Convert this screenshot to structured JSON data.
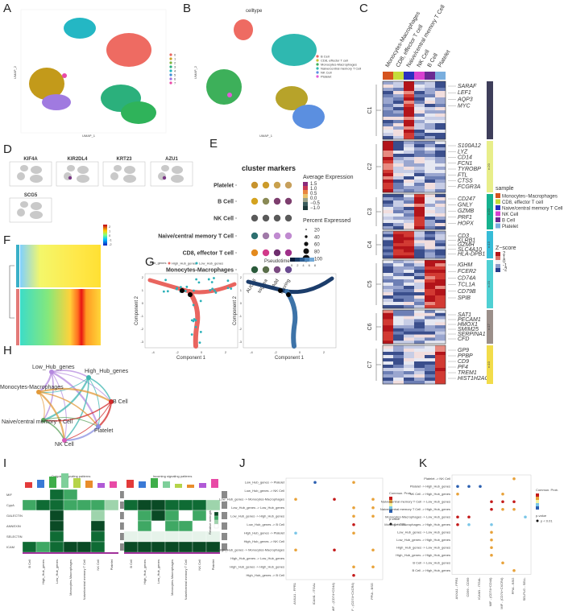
{
  "panels": {
    "A": {
      "label": "A",
      "legend": [
        "0",
        "1",
        "2",
        "3",
        "4",
        "5",
        "6",
        "7"
      ],
      "legend_colors": [
        "#e9655f",
        "#c9a227",
        "#7db33d",
        "#2ab07f",
        "#24b7c4",
        "#3c8fd6",
        "#a070e0",
        "#e94aa8"
      ],
      "xlab": "UMAP_1",
      "ylab": "UMAP_2"
    },
    "B": {
      "label": "B",
      "title": "celltype",
      "legend": [
        "B Cell",
        "CD8, effector T cell",
        "Monocytes-Macrophages",
        "Naive/central memory T Cell",
        "NK Cell",
        "Platelet"
      ],
      "legend_colors": [
        "#e9655f",
        "#c7c230",
        "#3db05a",
        "#2fb8b0",
        "#5b8fe0",
        "#e25ad8"
      ],
      "xlab": "UMAP_1",
      "ylab": "UMAP_2"
    },
    "C": {
      "label": "C",
      "columns": [
        "Monocytes-Macrophages",
        "CD8, effector T cell",
        "Naive/central memory T Cell",
        "NK Cell",
        "B Cell",
        "Platelet"
      ],
      "column_colors": [
        "#d5531e",
        "#c4dc3a",
        "#2a2fbf",
        "#d940d0",
        "#6b2a92",
        "#7aaede"
      ],
      "clusters": [
        "C1",
        "C2",
        "C3",
        "C4",
        "C5",
        "C6",
        "C7"
      ],
      "cluster_bars": [
        {
          "text": "n:20",
          "color": "#3e3e5a"
        },
        {
          "text": "n:20",
          "color": "#e8ee8a"
        },
        {
          "text": "n:20",
          "color": "#16b28f"
        },
        {
          "text": "n:13",
          "color": "#36bcd7"
        },
        {
          "text": "n:20",
          "color": "#4fd0d3"
        },
        {
          "text": "n:17",
          "color": "#9b8f8a"
        },
        {
          "text": "n:10",
          "color": "#f2dc4a"
        }
      ],
      "genes": {
        "C1": [
          "SARAF",
          "LEF1",
          "AQP3",
          "MYC"
        ],
        "C2": [
          "S100A12",
          "LYZ",
          "CD14",
          "FCN1",
          "TYROBP",
          "FTL",
          "CTSS",
          "FCGR3A"
        ],
        "C3": [
          "CD247",
          "GNLY",
          "GZMB",
          "PRF1",
          "HOPX"
        ],
        "C4": [
          "CD3",
          "KLRB1",
          "GZMH",
          "SLC4A10",
          "HLA-DPB1"
        ],
        "C5": [
          "IGHM",
          "FCER2",
          "CD74A",
          "TCL1A",
          "CD79B",
          "SPIB"
        ],
        "C6": [
          "SAT1",
          "PECAM1",
          "HMOX1",
          "SMIM25",
          "SERPINA1",
          "CFD"
        ],
        "C7": [
          "GP9",
          "PPBP",
          "CD9",
          "PF4",
          "TREM1",
          "HIST1H2AC"
        ]
      },
      "gene_colors": {
        "C1": "#444",
        "C2": "#a0c21a",
        "C3": "#1f9a3a",
        "C4": "#19a3c6",
        "C5": "#2ab0a8",
        "C6": "#555",
        "C7": "#c9ad1a"
      },
      "sample_legend_title": "sample",
      "sample_legend": [
        "Monocytes−Macrophages",
        "CD8, effector T cell",
        "Naive/central memory T Cell",
        "NK Cell",
        "B Cell",
        "Platelet"
      ],
      "zscore_title": "Z−score",
      "zscore_ticks": [
        "2",
        "1",
        "0",
        "-1",
        "-2"
      ]
    },
    "D": {
      "label": "D",
      "genes": [
        "KIF4A",
        "KIR2DL4",
        "KRT23",
        "AZU1",
        "SCG5"
      ]
    },
    "E": {
      "label": "E",
      "title": "cluster markers",
      "rows": [
        "Platelet",
        "B Cell",
        "NK Cell",
        "Naive/central memory T Cell",
        "CD8, effector T cell",
        "Monocytes-Macrophages"
      ],
      "cols": [
        "AUCell",
        "ssgsea",
        "Add",
        "Scoring"
      ],
      "avg_title": "Average Expression",
      "avg_ticks": [
        "1.5",
        "1.0",
        "0.5",
        "0.0",
        "−0.5",
        "−1.0"
      ],
      "pct_title": "Percent Expressed",
      "pct_ticks": [
        "20",
        "40",
        "60",
        "80",
        "100"
      ]
    },
    "F": {
      "label": "F",
      "legend_ticks": [
        "2",
        "1",
        "0",
        "-1",
        "-2"
      ]
    },
    "G": {
      "label": "G",
      "legend_title": "Hub_genes",
      "legend": [
        "High_Hub_genes",
        "Low_Hub_genes"
      ],
      "legend_colors": [
        "#e9655f",
        "#2ab0b8"
      ],
      "pseudo_title": "Pseudotime",
      "pseudo_ticks": [
        "0",
        "2",
        "4",
        "6",
        "8"
      ],
      "xlab": "Component 1",
      "ylab": "Component 2",
      "x_ticks": [
        "-4",
        "-2",
        "0",
        "2"
      ],
      "y_ticks": [
        "-3",
        "-2",
        "-1",
        "0",
        "1",
        "2"
      ]
    },
    "H": {
      "label": "H",
      "nodes": [
        "Low_Hub_genes",
        "High_Hub_genes",
        "Monocytes-Macrophages",
        "B Cell",
        "Naive/central memory T Cell",
        "Platelet",
        "NK Cell"
      ]
    },
    "I": {
      "label": "I",
      "left_title": "Outgoing signaling patterns",
      "right_title": "Incoming signaling patterns",
      "rows": [
        "MIF",
        "CypA",
        "GALECTIN",
        "ANNEXIN",
        "SELECTIN",
        "ICAM"
      ],
      "cols": [
        "B Cell",
        "High_Hub_genes",
        "Low_Hub_genes",
        "Monocytes-Macrophages",
        "Naive/central memory T Cell",
        "NK Cell",
        "Platelet"
      ],
      "strength_label": "Relative strength"
    },
    "J": {
      "label": "J",
      "rows": [
        "Low_Hub_genes -> Platelet",
        "Low_Hub_genes -> NK Cell",
        "Low_Hub_genes -> Monocytes-Macrophages",
        "Low_Hub_genes -> Low_Hub_genes",
        "Low_Hub_genes -> High_Hub_genes",
        "Low_Hub_genes -> B Cell",
        "High_Hub_genes -> Platelet",
        "High_Hub_genes -> NK Cell",
        "High_Hub_genes -> Monocytes-Macrophages",
        "High_Hub_genes -> Low_Hub_genes",
        "High_Hub_genes -> High_Hub_genes",
        "High_Hub_genes -> B Cell"
      ],
      "cols": [
        "ANXA1 - FPR1",
        "ICAM1 - ITGAL",
        "MIF - (CD74+CD44)",
        "MIF - (CD74+CXCR4)",
        "PPIA - BSG"
      ],
      "legend_title": "Commun. Prob.",
      "pval_title": "p-value",
      "pval": [
        "p < 0.01"
      ]
    },
    "K": {
      "label": "K",
      "rows": [
        "Platelet -> NK Cell",
        "Platelet -> High_Hub_genes",
        "NK Cell -> High_Hub_genes",
        "Naive/central memory T Cell -> Low_Hub_genes",
        "Naive/central memory T Cell -> High_Hub_genes",
        "Monocytes-Macrophages -> Low_Hub_genes",
        "Monocytes-Macrophages -> High_Hub_genes",
        "Low_Hub_genes -> Low_Hub_genes",
        "Low_Hub_genes -> High_Hub_genes",
        "High_Hub_genes -> Low_Hub_genes",
        "High_Hub_genes -> High_Hub_genes",
        "B Cell -> Low_Hub_genes",
        "B Cell -> High_Hub_genes"
      ],
      "cols": [
        "ANXA1 - FPR1",
        "CD99 - CD99",
        "ICAM1 - ITGAL",
        "MIF - (CD74+CD44)",
        "MIF - (CD74+CXCR4)",
        "PPIA - BSG",
        "SELPLG - SELL"
      ],
      "legend_title": "Commun. Prob.",
      "pval_title": "p-value",
      "pval": [
        "p < 0.01"
      ]
    }
  }
}
